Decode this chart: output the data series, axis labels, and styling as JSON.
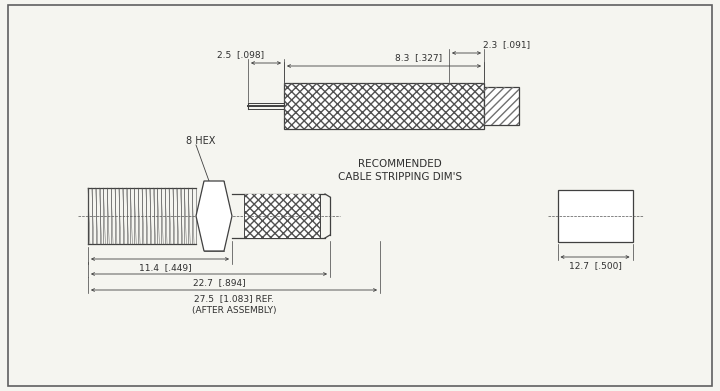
{
  "bg_color": "#f5f5f0",
  "line_color": "#404040",
  "hatch_color": "#404040",
  "title_text1": "RECOMMENDED",
  "title_text2": "CABLE STRIPPING DIM'S",
  "label_8hex": "8 HEX",
  "dim_23": "2.3  [.091]",
  "dim_25": "2.5  [.098]",
  "dim_83": "8.3  [.327]",
  "dim_114": "11.4  [.449]",
  "dim_227": "22.7  [.894]",
  "dim_275": "27.5  [1.083] REF.",
  "dim_275b": "(AFTER ASSEMBLY)",
  "dim_127": "12.7  [.500]"
}
